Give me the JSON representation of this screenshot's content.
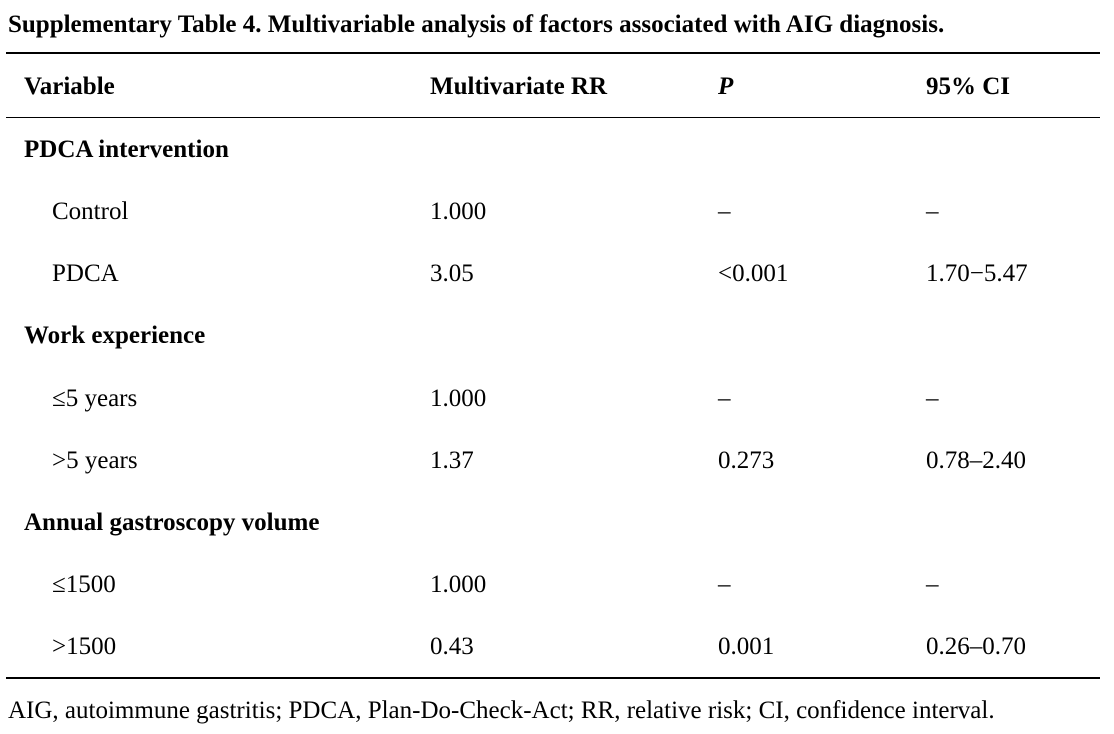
{
  "caption": "Supplementary Table 4. Multivariable analysis of factors associated with AIG diagnosis.",
  "headers": {
    "variable": "Variable",
    "rr": "Multivariate RR",
    "p": "P",
    "ci": "95% CI"
  },
  "groups": [
    {
      "label": "PDCA intervention",
      "rows": [
        {
          "variable": "Control",
          "rr": "1.000",
          "p": "–",
          "ci": "–"
        },
        {
          "variable": "PDCA",
          "rr": "3.05",
          "p": "<0.001",
          "ci": "1.70−5.47"
        }
      ]
    },
    {
      "label": "Work experience",
      "rows": [
        {
          "variable": "≤5 years",
          "rr": "1.000",
          "p": "–",
          "ci": "–"
        },
        {
          "variable": ">5 years",
          "rr": "1.37",
          "p": "0.273",
          "ci": "0.78–2.40"
        }
      ]
    },
    {
      "label": "Annual gastroscopy volume",
      "rows": [
        {
          "variable": "≤1500",
          "rr": "1.000",
          "p": "–",
          "ci": "–"
        },
        {
          "variable": ">1500",
          "rr": "0.43",
          "p": "0.001",
          "ci": "0.26–0.70"
        }
      ]
    }
  ],
  "footnote": "AIG, autoimmune gastritis; PDCA, Plan-Do-Check-Act; RR, relative risk; CI, confidence interval."
}
